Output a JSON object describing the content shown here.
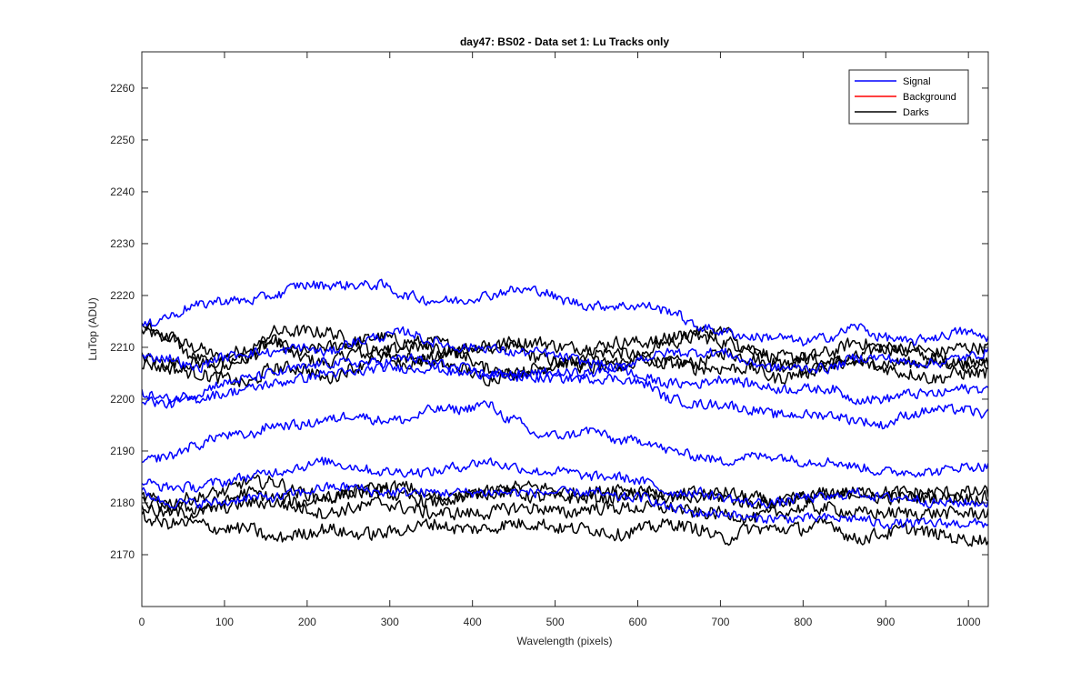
{
  "chart_data": {
    "type": "line",
    "title": "day47: BS02 - Data set 1: Lu Tracks only",
    "xlabel": "Wavelength (pixels)",
    "ylabel": "LuTop (ADU)",
    "xlim": [
      0,
      1024
    ],
    "ylim": [
      2160,
      2267
    ],
    "grid": false,
    "legend_position": "top-right",
    "x_ticks": [
      0,
      100,
      200,
      300,
      400,
      500,
      600,
      700,
      800,
      900,
      1000
    ],
    "y_ticks": [
      2170,
      2180,
      2190,
      2200,
      2210,
      2220,
      2230,
      2240,
      2250,
      2260
    ],
    "x": [
      0,
      32,
      64,
      96,
      128,
      160,
      192,
      224,
      256,
      288,
      320,
      352,
      384,
      416,
      448,
      480,
      512,
      544,
      576,
      608,
      640,
      672,
      704,
      736,
      768,
      800,
      832,
      864,
      896,
      928,
      960,
      992,
      1024
    ],
    "legend": [
      {
        "label": "Signal",
        "color": "#0000ff"
      },
      {
        "label": "Background",
        "color": "#ff0000"
      },
      {
        "label": "Darks",
        "color": "#000000"
      }
    ],
    "series": [
      {
        "name": "Signal",
        "color": "#0000ff",
        "noise": 1.2,
        "values": [
          2214,
          2216,
          2218,
          2219,
          2219,
          2220,
          2222,
          2222,
          2222,
          2222,
          2220,
          2219,
          2219,
          2220,
          2221,
          2221,
          2219,
          2218,
          2218,
          2218,
          2217,
          2214,
          2213,
          2212,
          2212,
          2211,
          2212,
          2214,
          2212,
          2211,
          2212,
          2213,
          2212
        ]
      },
      {
        "name": "Signal",
        "color": "#0000ff",
        "noise": 1.2,
        "values": [
          2208,
          2208,
          2206,
          2208,
          2209,
          2209,
          2210,
          2209,
          2211,
          2212,
          2213,
          2211,
          2210,
          2210,
          2209,
          2209,
          2208,
          2207,
          2206,
          2208,
          2209,
          2209,
          2209,
          2207,
          2206,
          2206,
          2206,
          2208,
          2208,
          2207,
          2207,
          2208,
          2209
        ]
      },
      {
        "name": "Signal",
        "color": "#0000ff",
        "noise": 1.2,
        "values": [
          2200,
          2199,
          2200,
          2201,
          2202,
          2203,
          2204,
          2205,
          2205,
          2206,
          2206,
          2206,
          2205,
          2205,
          2204,
          2205,
          2205,
          2205,
          2206,
          2204,
          2203,
          2203,
          2204,
          2203,
          2202,
          2202,
          2202,
          2200,
          2200,
          2201,
          2201,
          2202,
          2202
        ]
      },
      {
        "name": "Signal",
        "color": "#0000ff",
        "noise": 1.2,
        "values": [
          2201,
          2200,
          2201,
          2203,
          2204,
          2205,
          2206,
          2207,
          2207,
          2207,
          2208,
          2207,
          2206,
          2205,
          2205,
          2204,
          2204,
          2204,
          2204,
          2203,
          2200,
          2199,
          2199,
          2198,
          2197,
          2197,
          2197,
          2196,
          2195,
          2197,
          2198,
          2198,
          2197
        ]
      },
      {
        "name": "Signal",
        "color": "#0000ff",
        "noise": 1.2,
        "values": [
          2188,
          2189,
          2191,
          2193,
          2193,
          2195,
          2195,
          2196,
          2197,
          2196,
          2196,
          2198,
          2198,
          2199,
          2196,
          2193,
          2193,
          2194,
          2192,
          2192,
          2190,
          2189,
          2188,
          2189,
          2189,
          2188,
          2188,
          2187,
          2186,
          2186,
          2186,
          2187,
          2187
        ]
      },
      {
        "name": "Signal",
        "color": "#0000ff",
        "noise": 1.2,
        "values": [
          2184,
          2183,
          2183,
          2184,
          2185,
          2186,
          2187,
          2188,
          2187,
          2186,
          2186,
          2186,
          2187,
          2188,
          2187,
          2186,
          2186,
          2185,
          2185,
          2184,
          2182,
          2182,
          2181,
          2180,
          2180,
          2181,
          2181,
          2182,
          2181,
          2181,
          2180,
          2180,
          2180
        ]
      },
      {
        "name": "Signal",
        "color": "#0000ff",
        "noise": 1.2,
        "values": [
          2182,
          2180,
          2180,
          2180,
          2181,
          2181,
          2182,
          2183,
          2183,
          2182,
          2182,
          2182,
          2182,
          2182,
          2182,
          2182,
          2182,
          2182,
          2181,
          2181,
          2179,
          2178,
          2178,
          2177,
          2177,
          2177,
          2177,
          2177,
          2176,
          2176,
          2176,
          2176,
          2176
        ]
      },
      {
        "name": "Darks",
        "color": "#000000",
        "noise": 1.6,
        "values": [
          2213,
          2212,
          2210,
          2208,
          2210,
          2211,
          2208,
          2207,
          2209,
          2208,
          2207,
          2208,
          2209,
          2210,
          2210,
          2208,
          2207,
          2209,
          2209,
          2208,
          2207,
          2207,
          2209,
          2208,
          2206,
          2208,
          2207,
          2208,
          2210,
          2209,
          2208,
          2207,
          2207
        ]
      },
      {
        "name": "Darks",
        "color": "#000000",
        "noise": 1.6,
        "values": [
          2214,
          2212,
          2208,
          2206,
          2208,
          2211,
          2209,
          2210,
          2211,
          2212,
          2211,
          2211,
          2210,
          2210,
          2211,
          2211,
          2210,
          2210,
          2211,
          2211,
          2211,
          2212,
          2211,
          2210,
          2208,
          2208,
          2209,
          2211,
          2210,
          2210,
          2209,
          2210,
          2210
        ]
      },
      {
        "name": "Darks",
        "color": "#000000",
        "noise": 1.6,
        "values": [
          2208,
          2207,
          2207,
          2207,
          2208,
          2213,
          2213,
          2213,
          2211,
          2209,
          2208,
          2207,
          2206,
          2204,
          2205,
          2206,
          2207,
          2206,
          2206,
          2209,
          2212,
          2213,
          2213,
          2209,
          2207,
          2206,
          2206,
          2207,
          2207,
          2207,
          2207,
          2207,
          2207
        ]
      },
      {
        "name": "Darks",
        "color": "#000000",
        "noise": 1.6,
        "values": [
          2207,
          2206,
          2205,
          2204,
          2203,
          2206,
          2206,
          2204,
          2206,
          2209,
          2210,
          2210,
          2209,
          2206,
          2205,
          2206,
          2207,
          2207,
          2207,
          2207,
          2207,
          2206,
          2206,
          2206,
          2204,
          2205,
          2207,
          2207,
          2206,
          2205,
          2204,
          2205,
          2205
        ]
      },
      {
        "name": "Darks",
        "color": "#000000",
        "noise": 1.6,
        "values": [
          2181,
          2180,
          2181,
          2182,
          2184,
          2184,
          2182,
          2181,
          2182,
          2183,
          2183,
          2181,
          2181,
          2182,
          2182,
          2181,
          2181,
          2181,
          2181,
          2182,
          2181,
          2181,
          2182,
          2181,
          2180,
          2181,
          2182,
          2182,
          2182,
          2182,
          2182,
          2182,
          2182
        ]
      },
      {
        "name": "Darks",
        "color": "#000000",
        "noise": 1.6,
        "values": [
          2180,
          2179,
          2179,
          2180,
          2182,
          2181,
          2180,
          2181,
          2182,
          2182,
          2181,
          2180,
          2181,
          2182,
          2183,
          2183,
          2182,
          2182,
          2183,
          2182,
          2181,
          2182,
          2181,
          2180,
          2180,
          2181,
          2181,
          2182,
          2181,
          2181,
          2181,
          2181,
          2181
        ]
      },
      {
        "name": "Darks",
        "color": "#000000",
        "noise": 1.6,
        "values": [
          2179,
          2178,
          2178,
          2179,
          2180,
          2180,
          2179,
          2178,
          2179,
          2180,
          2179,
          2178,
          2178,
          2178,
          2179,
          2179,
          2178,
          2179,
          2179,
          2179,
          2179,
          2178,
          2178,
          2177,
          2178,
          2179,
          2179,
          2178,
          2178,
          2178,
          2178,
          2178,
          2178
        ]
      },
      {
        "name": "Darks",
        "color": "#000000",
        "noise": 1.6,
        "values": [
          2177,
          2176,
          2176,
          2175,
          2175,
          2173,
          2174,
          2175,
          2174,
          2174,
          2175,
          2176,
          2175,
          2175,
          2176,
          2176,
          2175,
          2175,
          2174,
          2175,
          2176,
          2175,
          2173,
          2175,
          2175,
          2175,
          2176,
          2173,
          2174,
          2175,
          2174,
          2173,
          2173
        ]
      }
    ]
  }
}
